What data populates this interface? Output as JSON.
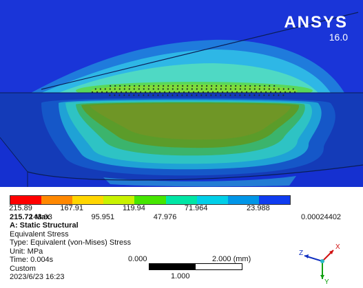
{
  "brand": {
    "name": "ANSYS",
    "version": "16.0"
  },
  "legend": {
    "colors": [
      "#ff0000",
      "#ff8800",
      "#ffd600",
      "#c9f200",
      "#46e600",
      "#00e6a5",
      "#00cfe8",
      "#0096e8",
      "#0f3cf0"
    ],
    "upper_ticks": [
      "215.89",
      "167.91",
      "119.94",
      "71.964",
      "23.988"
    ],
    "lower_ticks": [
      "143.93",
      "95.951",
      "47.976",
      "0.00024402"
    ],
    "max_label": "215.72 Max"
  },
  "info": {
    "title": "A: Static Structural",
    "result": "Equivalent Stress",
    "type": "Type: Equivalent (von-Mises) Stress",
    "unit": "Unit: MPa",
    "time": "Time: 0.004s",
    "custom": "Custom",
    "date": "2023/6/23 16:23"
  },
  "scale": {
    "zero": "0.000",
    "max": "2.000 (mm)",
    "mid": "1.000"
  },
  "triad": {
    "x": "X",
    "y": "Y",
    "z": "Z"
  },
  "colors": {
    "background": "#1730d2",
    "deep_blue": "#0f2fa6",
    "edge": "#0a1d55"
  }
}
